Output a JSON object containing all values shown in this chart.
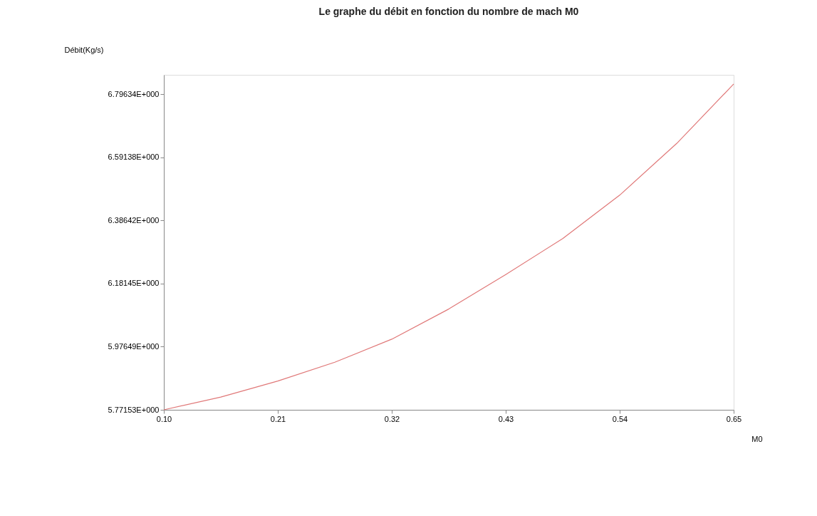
{
  "chart_data": {
    "type": "line",
    "title": "Le graphe du débit  en fonction du nombre de mach M0",
    "xlabel": "M0",
    "ylabel": "Débit(Kg/s)",
    "x": [
      0.1,
      0.155,
      0.21,
      0.265,
      0.32,
      0.375,
      0.43,
      0.485,
      0.54,
      0.595,
      0.65
    ],
    "series": [
      {
        "color": "#e07878",
        "values": [
          5.77153,
          5.813,
          5.865,
          5.926,
          6.001,
          6.099,
          6.211,
          6.328,
          6.469,
          6.637,
          6.83
        ]
      }
    ],
    "xlim": [
      0.1,
      0.65
    ],
    "xticks": [
      {
        "value": 0.1,
        "label": "0.10"
      },
      0.21,
      0.32,
      0.43,
      0.54,
      0.65
    ],
    "ylim": [
      5.77153,
      6.86
    ],
    "yticks": [
      {
        "value": 5.77153,
        "label": "5.77153E+000"
      },
      {
        "value": 5.97649,
        "label": "5.97649E+000"
      },
      {
        "value": 6.18145,
        "label": "6.18145E+000"
      },
      {
        "value": 6.38642,
        "label": "6.38642E+000"
      },
      {
        "value": 6.59138,
        "label": "6.59138E+000"
      },
      {
        "value": 6.79634,
        "label": "6.79634E+000"
      }
    ],
    "grid": false,
    "legend": false,
    "marker": "none",
    "line_style": "solid"
  }
}
